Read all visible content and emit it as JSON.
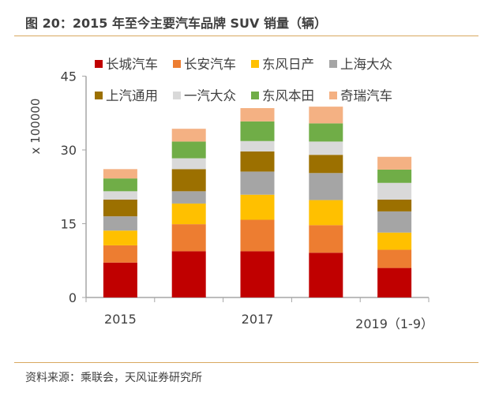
{
  "title": "图 20：2015 年至今主要汽车品牌 SUV 销量（辆）",
  "source": "资料来源：乘联会，天风证券研究所",
  "colors": {
    "rule": "#d9a860",
    "axis": "#a6a6a6"
  },
  "chart_data": {
    "type": "bar",
    "stacked": true,
    "title": "",
    "xlabel": "",
    "ylabel": "x 100000",
    "ylim": [
      0,
      45
    ],
    "yticks": [
      0,
      15,
      30,
      45
    ],
    "grid": false,
    "legend_position": "top",
    "categories": [
      "2015",
      "",
      "2017",
      "",
      "2019（1-9）"
    ],
    "series": [
      {
        "name": "长城汽车",
        "color": "#c00000",
        "values": [
          7.1,
          9.4,
          9.4,
          9.1,
          6.0
        ]
      },
      {
        "name": "长安汽车",
        "color": "#ed7d31",
        "values": [
          3.5,
          5.5,
          6.4,
          5.6,
          3.7
        ]
      },
      {
        "name": "东风日产",
        "color": "#ffc000",
        "values": [
          3.0,
          4.2,
          5.1,
          5.1,
          3.5
        ]
      },
      {
        "name": "上海大众",
        "color": "#a5a5a5",
        "values": [
          2.9,
          2.5,
          4.7,
          5.5,
          4.3
        ]
      },
      {
        "name": "上汽通用",
        "color": "#9c7000",
        "values": [
          3.4,
          4.5,
          4.1,
          3.7,
          2.4
        ]
      },
      {
        "name": "一汽大众",
        "color": "#d9d9d9",
        "values": [
          1.7,
          2.2,
          2.1,
          2.7,
          3.4
        ]
      },
      {
        "name": "东风本田",
        "color": "#70ad47",
        "values": [
          2.6,
          3.4,
          4.0,
          3.7,
          2.7
        ]
      },
      {
        "name": "奇瑞汽车",
        "color": "#f4b183",
        "values": [
          1.9,
          2.6,
          2.7,
          3.4,
          2.6
        ]
      }
    ]
  }
}
